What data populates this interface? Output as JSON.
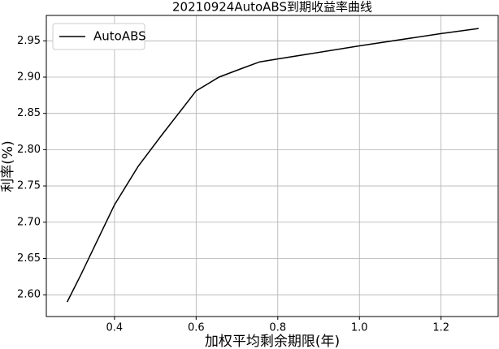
{
  "chart_data": {
    "type": "line",
    "title": "20210924AutoABS到期收益率曲线",
    "x_label": "加权平均剩余期限(年)",
    "y_label": "利率(%)",
    "x": [
      0.284,
      0.318,
      0.4,
      0.458,
      0.517,
      0.6,
      0.656,
      0.717,
      0.756,
      0.8,
      1.0,
      1.2,
      1.292
    ],
    "series": [
      {
        "name": "AutoABS",
        "color": "#000000",
        "values": [
          2.59,
          2.628,
          2.724,
          2.777,
          2.821,
          2.881,
          2.9,
          2.913,
          2.921,
          2.925,
          2.943,
          2.96,
          2.967
        ]
      }
    ],
    "xlim": [
      0.233,
      1.34
    ],
    "ylim": [
      2.57,
      2.985
    ],
    "xticks": [
      0.4,
      0.6,
      0.8,
      {
        "value": 1,
        "label": "1.0"
      },
      1.2
    ],
    "yticks": [
      {
        "value": 2.6,
        "label": "2.60"
      },
      {
        "value": 2.65,
        "label": "2.65"
      },
      {
        "value": 2.7,
        "label": "2.70"
      },
      {
        "value": 2.75,
        "label": "2.75"
      },
      {
        "value": 2.8,
        "label": "2.80"
      },
      {
        "value": 2.85,
        "label": "2.85"
      },
      {
        "value": 2.9,
        "label": "2.90"
      },
      {
        "value": 2.95,
        "label": "2.95"
      }
    ],
    "grid": true,
    "legend": "upper left"
  }
}
